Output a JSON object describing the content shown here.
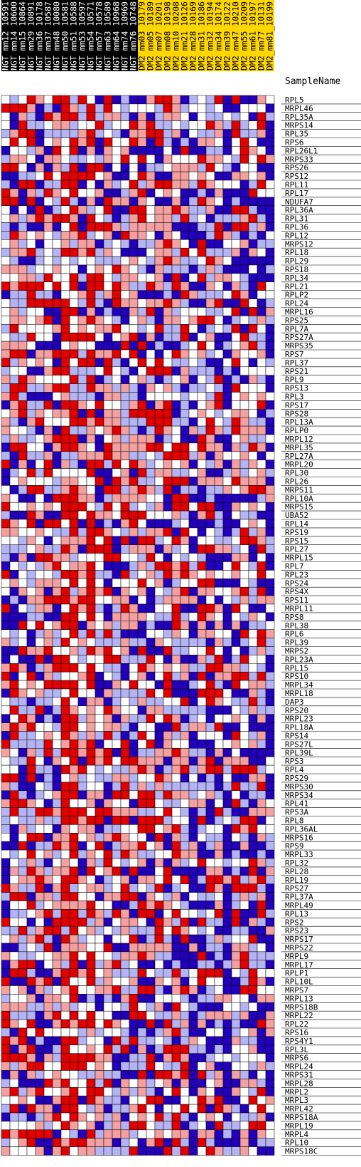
{
  "chart_data": {
    "type": "heatmap",
    "sample_label": "SampleName",
    "columns": [
      {
        "name": "NGT_mm12_10591",
        "group": "NGT"
      },
      {
        "name": "NGT_mm14_10600",
        "group": "NGT"
      },
      {
        "name": "NGT_mm15_10864",
        "group": "NGT"
      },
      {
        "name": "NGT_mm29_10891",
        "group": "NGT"
      },
      {
        "name": "NGT_mm36_10178",
        "group": "NGT"
      },
      {
        "name": "NGT_mm37_10587",
        "group": "NGT"
      },
      {
        "name": "NGT_mm48_10080",
        "group": "NGT"
      },
      {
        "name": "NGT_mm50_10581",
        "group": "NGT"
      },
      {
        "name": "NGT_mm51_10588",
        "group": "NGT"
      },
      {
        "name": "NGT_mm53_10597",
        "group": "NGT"
      },
      {
        "name": "NGT_mm54_10571",
        "group": "NGT"
      },
      {
        "name": "NGT_mm57_10578",
        "group": "NGT"
      },
      {
        "name": "NGT_mm63_10589",
        "group": "NGT"
      },
      {
        "name": "NGT_mm64_10968",
        "group": "NGT"
      },
      {
        "name": "NGT_mm74_10969",
        "group": "NGT"
      },
      {
        "name": "NGT_mm76_10748",
        "group": "NGT"
      },
      {
        "name": "DM2_mm03_10179",
        "group": "DM2"
      },
      {
        "name": "DM2_mm05_10189",
        "group": "DM2"
      },
      {
        "name": "DM2_mm07_10201",
        "group": "DM2"
      },
      {
        "name": "DM2_mm08_10198",
        "group": "DM2"
      },
      {
        "name": "DM2_mm10_10208",
        "group": "DM2"
      },
      {
        "name": "DM2_mm21_10126",
        "group": "DM2"
      },
      {
        "name": "DM2_mm28_10169",
        "group": "DM2"
      },
      {
        "name": "DM2_mm31_10186",
        "group": "DM2"
      },
      {
        "name": "DM2_mm32_10194",
        "group": "DM2"
      },
      {
        "name": "DM2_mm34_10174",
        "group": "DM2"
      },
      {
        "name": "DM2_mm39_10122",
        "group": "DM2"
      },
      {
        "name": "DM2_mm47_10210",
        "group": "DM2"
      },
      {
        "name": "DM2_mm55_10209",
        "group": "DM2"
      },
      {
        "name": "DM2_mm61_10197",
        "group": "DM2"
      },
      {
        "name": "DM2_mm77_10131",
        "group": "DM2"
      },
      {
        "name": "DM2_mm81_10199",
        "group": "DM2"
      }
    ],
    "group_colors": {
      "NGT": "#000000",
      "DM2": "#ffd700"
    },
    "rows": [
      "RPL5",
      "MRPL46",
      "RPL35A",
      "MRPS14",
      "RPL35",
      "RPS6",
      "RPL26L1",
      "MRPS33",
      "RPS26",
      "RPS12",
      "RPL11",
      "RPL17",
      "NDUFA7",
      "RPL36A",
      "RPL31",
      "RPL36",
      "RPL12",
      "MRPS12",
      "RPL18",
      "RPL29",
      "RPS18",
      "RPL34",
      "RPL21",
      "RPLP2",
      "RPL24",
      "MRPL16",
      "RPS25",
      "RPL7A",
      "RPS27A",
      "MRPS35",
      "RPS7",
      "RPL37",
      "RPS21",
      "RPL9",
      "RPS13",
      "RPL3",
      "RPS17",
      "RPS28",
      "RPL13A",
      "RPLP0",
      "MRPL12",
      "MRPL35",
      "RPL27A",
      "MRPL20",
      "RPL30",
      "RPL26",
      "MRPS11",
      "RPL10A",
      "MRPS15",
      "UBA52",
      "RPL14",
      "RPS19",
      "RPS15",
      "RPL27",
      "MRPL15",
      "RPL7",
      "RPL23",
      "RPS24",
      "RPS4X",
      "RPS11",
      "MRPL11",
      "RPS8",
      "RPL38",
      "RPL6",
      "RPL39",
      "MRPS2",
      "RPL23A",
      "RPL15",
      "RPS10",
      "MRPL34",
      "MRPL18",
      "DAP3",
      "RPS20",
      "MRPL23",
      "RPL18A",
      "RPS14",
      "RPS27L",
      "RPL39L",
      "RPS3",
      "RPL4",
      "RPS29",
      "MRPS30",
      "MRPS34",
      "RPL41",
      "RPS3A",
      "RPL8",
      "RPL36AL",
      "MRPS16",
      "RPS9",
      "MRPL33",
      "RPL32",
      "RPL28",
      "RPL19",
      "RPS27",
      "RPL37A",
      "MRPL49",
      "RPL13",
      "RPS2",
      "RPS23",
      "MRPS17",
      "MRPS22",
      "MRPL9",
      "MRPL17",
      "RPLP1",
      "RPL10L",
      "MRPS7",
      "MRPL13",
      "MRPS18B",
      "MRPL22",
      "RPL22",
      "RPS16",
      "RPS4Y1",
      "RPL3L",
      "MRPS6",
      "MRPL24",
      "MRPS31",
      "MRPL28",
      "MRPL2",
      "MRPL3",
      "MRPL42",
      "MRPS18A",
      "MRPL19",
      "MRPL4",
      "RPL10",
      "MRPS18C"
    ],
    "color_scale": {
      "low": "#2200bb",
      "mid_low": "#b4b4f5",
      "mid": "#ffffff",
      "mid_high": "#f5a0a0",
      "high": "#e00000"
    },
    "seed": 7
  }
}
